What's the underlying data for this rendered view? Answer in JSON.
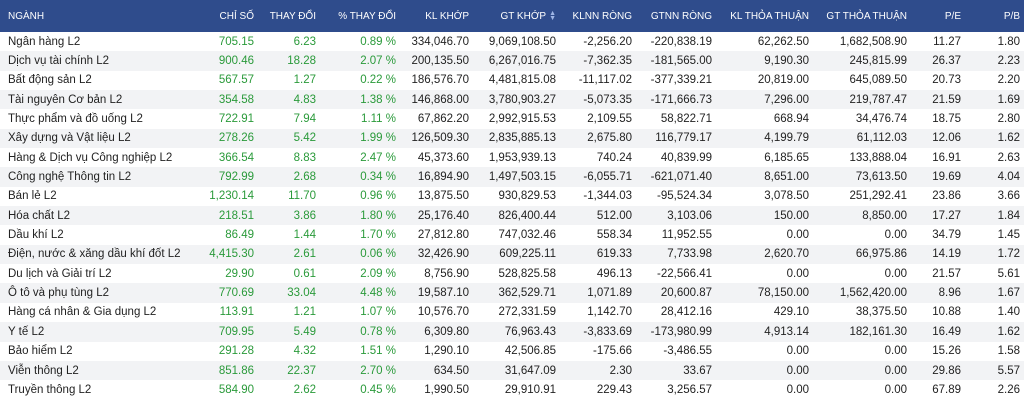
{
  "table": {
    "headers": [
      "NGÀNH",
      "CHỈ SỐ",
      "THAY ĐỔI",
      "% THAY ĐỔI",
      "KL KHỚP",
      "GT KHỚP",
      "KLNN RÒNG",
      "GTNN RÒNG",
      "KL THỎA THUẬN",
      "GT THỎA THUẬN",
      "P/E",
      "P/B"
    ],
    "rows": [
      [
        "Ngân hàng L2",
        "705.15",
        "6.23",
        "0.89 %",
        "334,046.70",
        "9,069,108.50",
        "-2,256.20",
        "-220,838.19",
        "62,262.50",
        "1,682,508.90",
        "11.27",
        "1.80"
      ],
      [
        "Dịch vụ tài chính L2",
        "900.46",
        "18.28",
        "2.07 %",
        "200,135.50",
        "6,267,016.75",
        "-7,362.35",
        "-181,565.00",
        "9,190.30",
        "245,815.99",
        "26.37",
        "2.23"
      ],
      [
        "Bất động sản L2",
        "567.57",
        "1.27",
        "0.22 %",
        "186,576.70",
        "4,481,815.08",
        "-11,117.02",
        "-377,339.21",
        "20,819.00",
        "645,089.50",
        "20.73",
        "2.20"
      ],
      [
        "Tài nguyên Cơ bản L2",
        "354.58",
        "4.83",
        "1.38 %",
        "146,868.00",
        "3,780,903.27",
        "-5,073.35",
        "-171,666.73",
        "7,296.00",
        "219,787.47",
        "21.59",
        "1.69"
      ],
      [
        "Thực phẩm và đồ uống L2",
        "722.91",
        "7.94",
        "1.11 %",
        "67,862.20",
        "2,992,915.53",
        "2,109.55",
        "58,822.71",
        "668.94",
        "34,476.74",
        "18.75",
        "2.80"
      ],
      [
        "Xây dựng và Vật liệu L2",
        "278.26",
        "5.42",
        "1.99 %",
        "126,509.30",
        "2,835,885.13",
        "2,675.80",
        "116,779.17",
        "4,199.79",
        "61,112.03",
        "12.06",
        "1.62"
      ],
      [
        "Hàng & Dịch vụ Công nghiệp L2",
        "366.54",
        "8.83",
        "2.47 %",
        "45,373.60",
        "1,953,939.13",
        "740.24",
        "40,839.99",
        "6,185.65",
        "133,888.04",
        "16.91",
        "2.63"
      ],
      [
        "Công nghệ Thông tin L2",
        "792.99",
        "2.68",
        "0.34 %",
        "16,894.90",
        "1,497,503.15",
        "-6,055.71",
        "-621,071.40",
        "8,651.00",
        "73,613.50",
        "19.69",
        "4.04"
      ],
      [
        "Bán lẻ L2",
        "1,230.14",
        "11.70",
        "0.96 %",
        "13,875.50",
        "930,829.53",
        "-1,344.03",
        "-95,524.34",
        "3,078.50",
        "251,292.41",
        "23.86",
        "3.66"
      ],
      [
        "Hóa chất L2",
        "218.51",
        "3.86",
        "1.80 %",
        "25,176.40",
        "826,400.44",
        "512.00",
        "3,103.06",
        "150.00",
        "8,850.00",
        "17.27",
        "1.84"
      ],
      [
        "Dầu khí L2",
        "86.49",
        "1.44",
        "1.70 %",
        "27,812.80",
        "747,032.46",
        "558.34",
        "11,952.55",
        "0.00",
        "0.00",
        "34.79",
        "1.45"
      ],
      [
        "Điện, nước & xăng dầu khí đốt L2",
        "4,415.30",
        "2.61",
        "0.06 %",
        "32,426.90",
        "609,225.11",
        "619.33",
        "7,733.98",
        "2,620.70",
        "66,975.86",
        "14.19",
        "1.72"
      ],
      [
        "Du lịch và Giải trí L2",
        "29.90",
        "0.61",
        "2.09 %",
        "8,756.90",
        "528,825.58",
        "496.13",
        "-22,566.41",
        "0.00",
        "0.00",
        "21.57",
        "5.61"
      ],
      [
        "Ô tô và phụ tùng L2",
        "770.69",
        "33.04",
        "4.48 %",
        "19,587.10",
        "362,529.71",
        "1,071.89",
        "20,600.87",
        "78,150.00",
        "1,562,420.00",
        "8.96",
        "1.67"
      ],
      [
        "Hàng cá nhân & Gia dụng L2",
        "113.91",
        "1.21",
        "1.07 %",
        "10,576.70",
        "272,331.59",
        "1,142.70",
        "28,412.16",
        "429.10",
        "38,375.50",
        "10.88",
        "1.40"
      ],
      [
        "Y tế L2",
        "709.95",
        "5.49",
        "0.78 %",
        "6,309.80",
        "76,963.43",
        "-3,833.69",
        "-173,980.99",
        "4,913.14",
        "182,161.30",
        "16.49",
        "1.62"
      ],
      [
        "Bảo hiểm L2",
        "291.28",
        "4.32",
        "1.51 %",
        "1,290.10",
        "42,506.85",
        "-175.66",
        "-3,486.55",
        "0.00",
        "0.00",
        "15.26",
        "1.58"
      ],
      [
        "Viễn thông L2",
        "851.86",
        "22.37",
        "2.70 %",
        "634.50",
        "31,647.09",
        "2.30",
        "33.67",
        "0.00",
        "0.00",
        "29.86",
        "5.57"
      ],
      [
        "Truyền thông L2",
        "584.90",
        "2.62",
        "0.45 %",
        "1,990.50",
        "29,910.91",
        "229.43",
        "3,256.57",
        "0.00",
        "0.00",
        "67.89",
        "2.26"
      ]
    ]
  }
}
